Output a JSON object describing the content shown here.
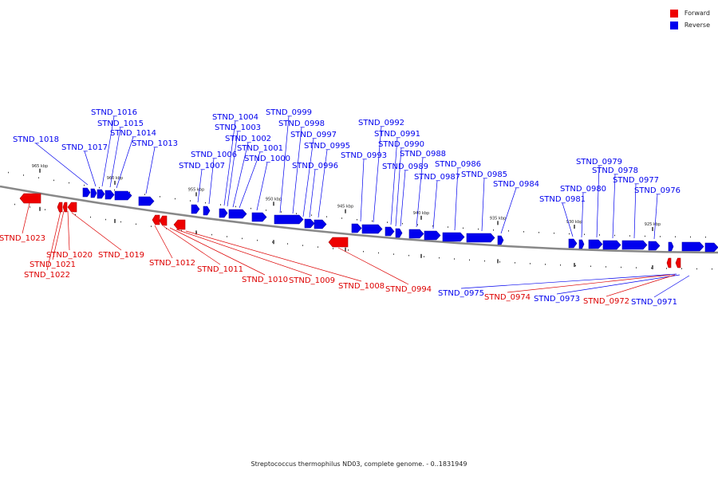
{
  "caption": "Streptococcus thermophilus ND03, complete genome. - 0..1831949",
  "legend": [
    {
      "label": "Forward",
      "color": "#ee0000"
    },
    {
      "label": "Reverse",
      "color": "#0000ee"
    }
  ],
  "ticks": [
    "965 kbp",
    "960 kbp",
    "955 kbp",
    "950 kbp",
    "945 kbp",
    "940 kbp",
    "935 kbp",
    "930 kbp",
    "925 kbp"
  ],
  "genes_forward": [
    "STND_1023",
    "STND_1022",
    "STND_1021",
    "STND_1020",
    "STND_1019",
    "STND_1012",
    "STND_1011",
    "STND_1010",
    "STND_1009",
    "STND_1008",
    "STND_0994",
    "STND_0974",
    "STND_0972"
  ],
  "genes_reverse": [
    "STND_1018",
    "STND_1017",
    "STND_1016",
    "STND_1015",
    "STND_1014",
    "STND_1013",
    "STND_1007",
    "STND_1006",
    "STND_1004",
    "STND_1003",
    "STND_1002",
    "STND_1001",
    "STND_1000",
    "STND_0999",
    "STND_0998",
    "STND_0997",
    "STND_0996",
    "STND_0995",
    "STND_0993",
    "STND_0992",
    "STND_0991",
    "STND_0990",
    "STND_0989",
    "STND_0988",
    "STND_0987",
    "STND_0986",
    "STND_0985",
    "STND_0984",
    "STND_0981",
    "STND_0980",
    "STND_0979",
    "STND_0978",
    "STND_0977",
    "STND_0976",
    "STND_0975",
    "STND_0973",
    "STND_0971"
  ]
}
